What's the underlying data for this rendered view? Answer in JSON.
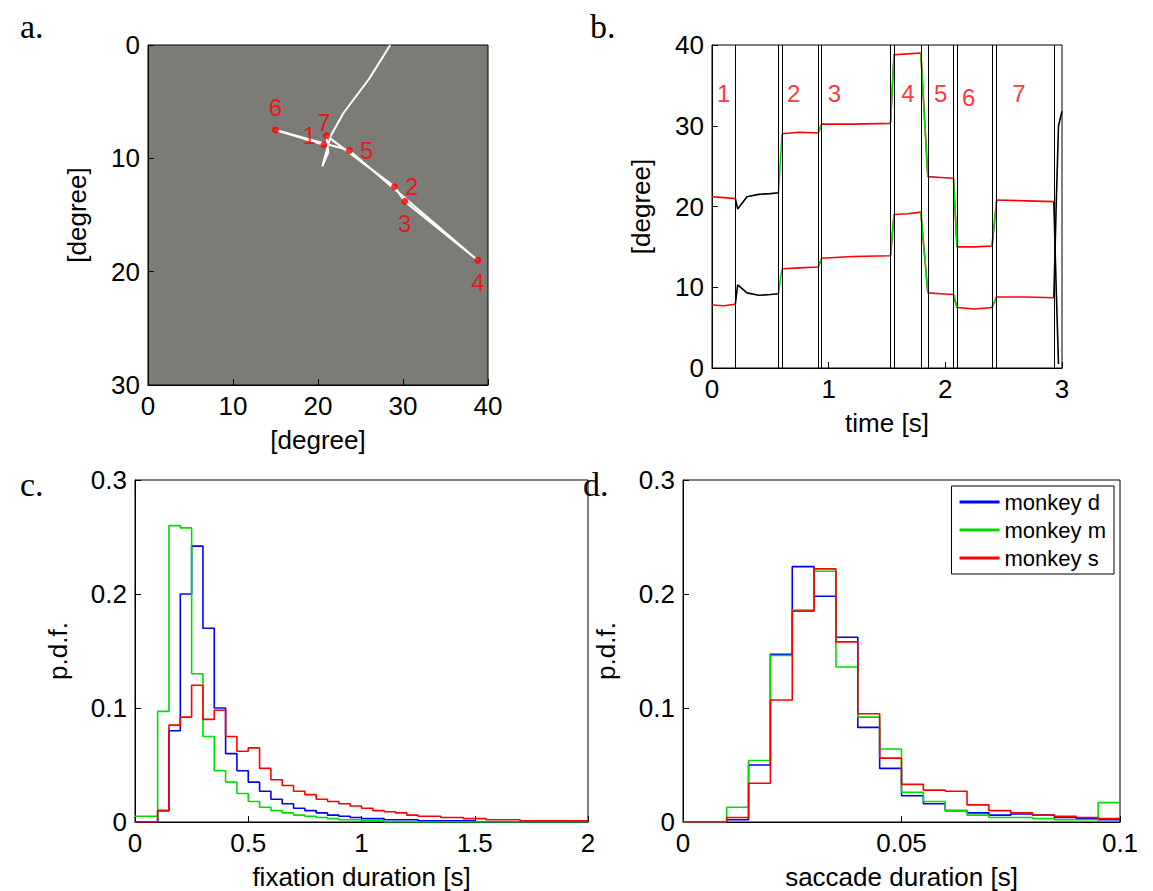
{
  "chart_data": [
    {
      "type": "line",
      "title": "a.",
      "xlabel": "[degree]",
      "ylabel": "[degree]",
      "xlim": [
        0,
        40
      ],
      "xticks": [
        0,
        10,
        20,
        30,
        40
      ],
      "ylim": [
        30,
        0
      ],
      "yticks": [
        0,
        10,
        20,
        30
      ],
      "series": [
        {
          "type": "line",
          "color": "#ffffff",
          "x": [
            28.5,
            26,
            23,
            21.5,
            20.5,
            21.2,
            21,
            29,
            30.2,
            38.8,
            23.7,
            15,
            20.7
          ],
          "values": [
            0,
            3,
            6,
            8,
            10.7,
            9.5,
            8,
            12.5,
            13.8,
            19,
            9.3,
            7.5,
            8.8
          ]
        },
        {
          "type": "scatter",
          "color": "#ff0000",
          "x": [
            21,
            29,
            30.2,
            38.8,
            23.7,
            15,
            20.7
          ],
          "values": [
            8,
            12.5,
            13.8,
            19,
            9.3,
            7.5,
            8.8
          ],
          "labels": [
            "1",
            "2",
            "3",
            "4",
            "5",
            "6",
            "7"
          ]
        }
      ]
    },
    {
      "type": "line",
      "title": "b.",
      "xlabel": "time [s]",
      "ylabel": "[degree]",
      "xlim": [
        0,
        3
      ],
      "xticks": [
        0,
        1,
        2,
        3
      ],
      "ylim": [
        0,
        40
      ],
      "yticks": [
        0,
        10,
        20,
        30,
        40
      ],
      "x": [
        0,
        0.1,
        0.2,
        0.22,
        0.3,
        0.4,
        0.5,
        0.57,
        0.6,
        0.75,
        0.91,
        0.94,
        1.2,
        1.53,
        1.56,
        1.68,
        1.79,
        1.85,
        1.96,
        2.07,
        2.1,
        2.25,
        2.4,
        2.44,
        2.7,
        2.93,
        2.95,
        2.97,
        3.0
      ],
      "series": [
        {
          "color": "#000000",
          "values": [
            null,
            null,
            21.0,
            19.7,
            21.2,
            21.5,
            21.6,
            21.7,
            null,
            null,
            null,
            null,
            null,
            null,
            null,
            null,
            null,
            null,
            null,
            null,
            null,
            null,
            null,
            null,
            null,
            20.6,
            10,
            0.5,
            null
          ]
        },
        {
          "color": "#000000",
          "values": [
            null,
            null,
            7.9,
            10.3,
            9.3,
            9.0,
            9.1,
            9.2,
            null,
            null,
            null,
            null,
            null,
            null,
            null,
            null,
            null,
            null,
            null,
            null,
            null,
            null,
            null,
            null,
            null,
            8.7,
            20,
            30,
            31.8
          ]
        },
        {
          "color": "#ff0000",
          "values": [
            21.2,
            21.1,
            21.0,
            null,
            null,
            null,
            null,
            null,
            29.0,
            29.2,
            29.1,
            30.2,
            30.2,
            30.3,
            38.8,
            38.9,
            39.0,
            23.7,
            23.6,
            23.5,
            15.0,
            15.0,
            15.1,
            20.8,
            20.7,
            20.6,
            null,
            null,
            null
          ]
        },
        {
          "color": "#ff0000",
          "values": [
            7.8,
            7.7,
            7.9,
            null,
            null,
            null,
            null,
            null,
            12.3,
            12.4,
            12.5,
            13.6,
            13.8,
            13.9,
            19.0,
            19.1,
            19.3,
            9.3,
            9.2,
            9.1,
            7.5,
            7.3,
            7.5,
            8.8,
            8.8,
            8.7,
            null,
            null,
            null
          ]
        },
        {
          "color": "#00dd00",
          "values": [
            null,
            null,
            null,
            null,
            null,
            null,
            null,
            21.7,
            29.0,
            null,
            29.1,
            30.2,
            null,
            30.3,
            38.8,
            null,
            39.0,
            23.7,
            null,
            23.5,
            15.0,
            null,
            15.1,
            20.8,
            null,
            null,
            null,
            null,
            null
          ]
        },
        {
          "color": "#00dd00",
          "values": [
            null,
            null,
            null,
            null,
            null,
            null,
            null,
            9.2,
            12.3,
            null,
            12.5,
            13.6,
            null,
            13.9,
            19.0,
            null,
            19.3,
            9.3,
            null,
            9.1,
            7.5,
            null,
            7.5,
            8.8,
            null,
            null,
            null,
            null,
            null
          ]
        }
      ],
      "event_times": [
        0.2,
        0.57,
        0.6,
        0.91,
        0.94,
        1.53,
        1.56,
        1.79,
        1.85,
        2.07,
        2.1,
        2.4,
        2.44,
        2.93
      ],
      "annotations": [
        {
          "text": "1",
          "x": 0.1,
          "y": 34,
          "color": "#ff0000"
        },
        {
          "text": "2",
          "x": 0.7,
          "y": 34,
          "color": "#ff0000"
        },
        {
          "text": "3",
          "x": 1.05,
          "y": 34,
          "color": "#ff0000"
        },
        {
          "text": "4",
          "x": 1.68,
          "y": 34,
          "color": "#ff0000"
        },
        {
          "text": "5",
          "x": 1.96,
          "y": 34,
          "color": "#ff0000"
        },
        {
          "text": "6",
          "x": 2.2,
          "y": 33.5,
          "color": "#ff0000"
        },
        {
          "text": "7",
          "x": 2.63,
          "y": 34,
          "color": "#ff0000"
        }
      ]
    },
    {
      "type": "histogram",
      "title": "c.",
      "xlabel": "fixation duration [s]",
      "ylabel": "p.d.f.",
      "xlim": [
        0,
        2
      ],
      "xticks": [
        0,
        0.5,
        1,
        1.5,
        2
      ],
      "ylim": [
        0,
        0.3
      ],
      "yticks": [
        0,
        0.1,
        0.2,
        0.3
      ],
      "bins": [
        0,
        0.05,
        0.1,
        0.15,
        0.2,
        0.25,
        0.3,
        0.35,
        0.4,
        0.45,
        0.5,
        0.55,
        0.6,
        0.65,
        0.7,
        0.75,
        0.8,
        0.85,
        0.9,
        0.95,
        1,
        1.05,
        1.1,
        1.15,
        1.2,
        1.25,
        1.3,
        1.35,
        1.4,
        1.45,
        1.5,
        1.55,
        1.6,
        1.65,
        1.7,
        1.75,
        1.8,
        1.85,
        1.9,
        1.95,
        2
      ],
      "series": [
        {
          "name": "monkey d",
          "color": "#0000ff",
          "values": [
            0,
            0,
            0.01,
            0.08,
            0.2,
            0.242,
            0.17,
            0.1,
            0.06,
            0.045,
            0.035,
            0.027,
            0.02,
            0.016,
            0.012,
            0.01,
            0.008,
            0.006,
            0.005,
            0.004,
            0.003,
            0.003,
            0.002,
            0.002,
            0.002,
            0.001,
            0.001,
            0.001,
            0.001,
            0.001,
            0,
            0,
            0,
            0,
            0,
            0,
            0,
            0,
            0,
            0
          ]
        },
        {
          "name": "monkey m",
          "color": "#00dd00",
          "values": [
            0.005,
            0.005,
            0.097,
            0.26,
            0.258,
            0.13,
            0.075,
            0.045,
            0.035,
            0.025,
            0.018,
            0.013,
            0.01,
            0.008,
            0.006,
            0.005,
            0.004,
            0.003,
            0.002,
            0.002,
            0.001,
            0.001,
            0,
            0,
            0,
            0,
            0,
            0,
            0,
            0,
            0,
            0,
            0,
            0,
            0,
            0,
            0,
            0,
            0,
            0
          ]
        },
        {
          "name": "monkey s",
          "color": "#ff0000",
          "values": [
            0,
            0,
            0.01,
            0.085,
            0.092,
            0.12,
            0.09,
            0.098,
            0.075,
            0.062,
            0.065,
            0.047,
            0.037,
            0.032,
            0.027,
            0.024,
            0.02,
            0.018,
            0.016,
            0.014,
            0.012,
            0.01,
            0.009,
            0.008,
            0.006,
            0.005,
            0.005,
            0.004,
            0.004,
            0.003,
            0.003,
            0.002,
            0.002,
            0.002,
            0.001,
            0.001,
            0.001,
            0.001,
            0.001,
            0.001
          ]
        }
      ]
    },
    {
      "type": "histogram",
      "title": "d.",
      "xlabel": "saccade duration [s]",
      "ylabel": "p.d.f.",
      "xlim": [
        0,
        0.1
      ],
      "xticks": [
        0,
        0.05,
        0.1
      ],
      "ylim": [
        0,
        0.3
      ],
      "yticks": [
        0,
        0.1,
        0.2,
        0.3
      ],
      "legend": "upper right",
      "bins": [
        0,
        0.005,
        0.01,
        0.015,
        0.02,
        0.025,
        0.03,
        0.035,
        0.04,
        0.045,
        0.05,
        0.055,
        0.06,
        0.065,
        0.07,
        0.075,
        0.08,
        0.085,
        0.09,
        0.095,
        0.1
      ],
      "series": [
        {
          "name": "monkey d",
          "color": "#0000ff",
          "values": [
            0,
            0,
            0.002,
            0.05,
            0.147,
            0.224,
            0.198,
            0.162,
            0.083,
            0.047,
            0.023,
            0.016,
            0.01,
            0.008,
            0.006,
            0.007,
            0.006,
            0.004,
            0.003,
            0.002
          ]
        },
        {
          "name": "monkey m",
          "color": "#00dd00",
          "values": [
            0,
            0,
            0.013,
            0.054,
            0.146,
            0.186,
            0.22,
            0.136,
            0.092,
            0.064,
            0.026,
            0.018,
            0.01,
            0.006,
            0.004,
            0.004,
            0.003,
            0.002,
            0.002,
            0.017
          ]
        },
        {
          "name": "monkey s",
          "color": "#ff0000",
          "values": [
            0,
            0,
            0.004,
            0.034,
            0.107,
            0.185,
            0.222,
            0.158,
            0.095,
            0.056,
            0.033,
            0.028,
            0.027,
            0.015,
            0.01,
            0.008,
            0.006,
            0.005,
            0.004,
            0.003
          ]
        }
      ]
    }
  ]
}
